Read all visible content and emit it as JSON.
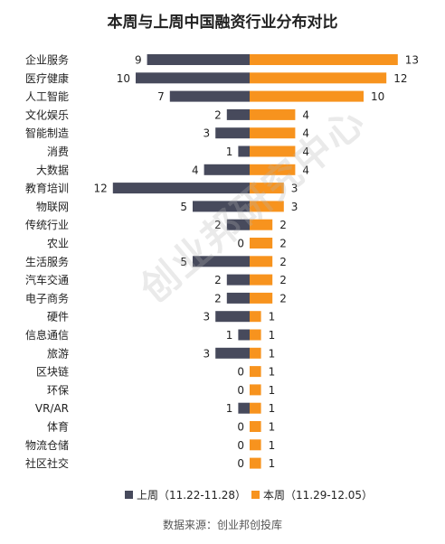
{
  "chart_data": {
    "type": "bar",
    "orientation": "horizontal-diverging",
    "title": "本周与上周中国融资行业分布对比",
    "categories": [
      "企业服务",
      "医疗健康",
      "人工智能",
      "文化娱乐",
      "智能制造",
      "消费",
      "大数据",
      "教育培训",
      "物联网",
      "传统行业",
      "农业",
      "生活服务",
      "汽车交通",
      "电子商务",
      "硬件",
      "信息通信",
      "旅游",
      "区块链",
      "环保",
      "VR/AR",
      "体育",
      "物流仓储",
      "社区社交"
    ],
    "series": [
      {
        "name": "上周（11.22-11.28）",
        "color": "#474a5c",
        "side": "left",
        "values": [
          9,
          10,
          7,
          2,
          3,
          1,
          4,
          12,
          5,
          2,
          0,
          5,
          2,
          2,
          3,
          1,
          3,
          0,
          0,
          1,
          0,
          0,
          0
        ]
      },
      {
        "name": "本周（11.29-12.05）",
        "color": "#f7931e",
        "side": "right",
        "values": [
          13,
          12,
          10,
          4,
          4,
          4,
          4,
          3,
          3,
          2,
          2,
          2,
          2,
          2,
          1,
          1,
          1,
          1,
          1,
          1,
          1,
          1,
          1
        ]
      }
    ],
    "legend_position": "bottom",
    "grid": false
  },
  "source_note": "数据来源：创业邦创投库",
  "watermark": "创业邦研究中心"
}
